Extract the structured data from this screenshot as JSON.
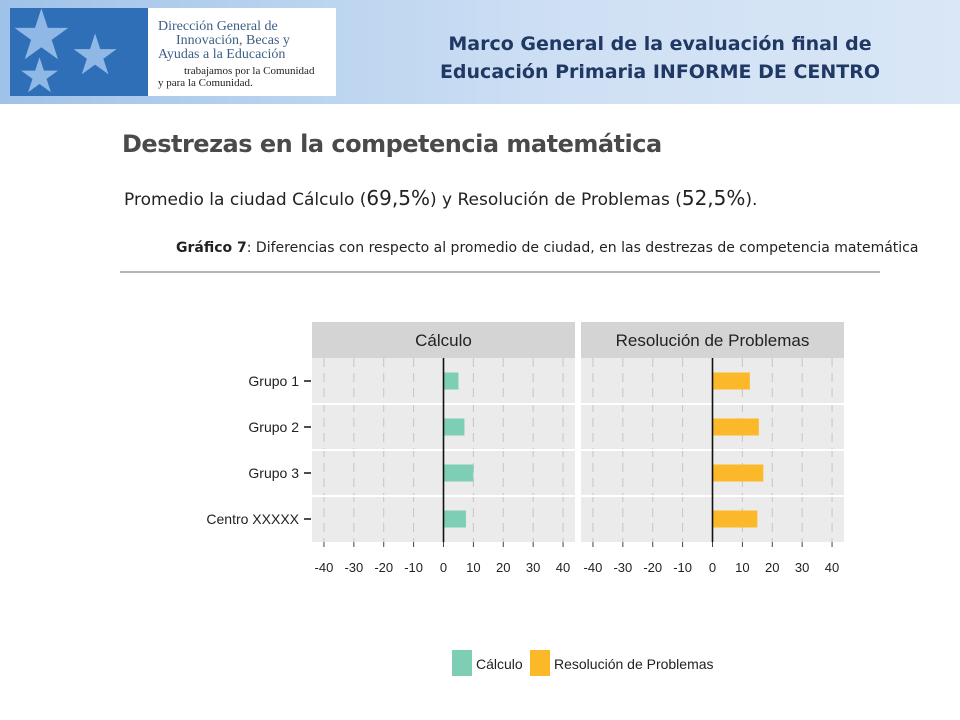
{
  "header": {
    "logo": {
      "line1": "Dirección General de",
      "line2": "Innovación, Becas y",
      "line3": "Ayudas a la Educación",
      "tag1": "trabajamos por la Comunidad",
      "tag2": "y para la Comunidad."
    },
    "title_line1": "Marco General de la evaluación final de",
    "title_line2": "Educación Primaria INFORME DE CENTRO"
  },
  "section_title": "Destrezas en la competencia matemática",
  "subtitle": {
    "part1": "Promedio  la ciudad Cálculo (",
    "value1": "69,5%",
    "part2": ") y Resolución de Problemas (",
    "value2": "52,5%",
    "part3": ")."
  },
  "caption": {
    "label": "Gráfico 7",
    "text": ": Diferencias con respecto al promedio de ciudad, en las destrezas de competencia matemática"
  },
  "colors": {
    "calculo": "#7ecdb5",
    "resolucion": "#fbb829",
    "panel_bg": "#ebebeb",
    "strip_bg": "#d4d4d4"
  },
  "chart_data": {
    "type": "bar",
    "orientation": "horizontal",
    "categories": [
      "Grupo 1",
      "Grupo 2",
      "Grupo 3",
      "Centro  XXXXX"
    ],
    "x_ticks": [
      -40,
      -30,
      -20,
      -10,
      0,
      10,
      20,
      30,
      40
    ],
    "xlim": [
      -44,
      44
    ],
    "panels": [
      {
        "title": "Cálculo",
        "series": "Cálculo",
        "values": [
          5,
          7,
          10,
          7.5
        ]
      },
      {
        "title": "Resolución de Problemas",
        "series": "Resolución de Problemas",
        "values": [
          12.5,
          15.5,
          17,
          15
        ]
      }
    ],
    "legend": [
      "Cálculo",
      "Resolución de Problemas"
    ],
    "legend_position": "bottom",
    "grid": true
  }
}
